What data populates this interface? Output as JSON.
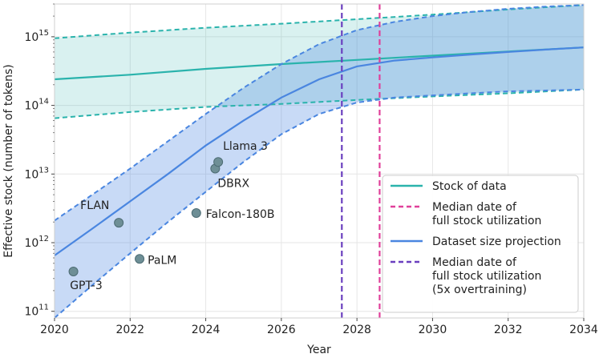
{
  "chart_data": {
    "type": "line",
    "xlabel": "Year",
    "ylabel": "Effective stock (number of tokens)",
    "xlim": [
      2020,
      2034
    ],
    "ylim": [
      80000000000,
      3000000000000000
    ],
    "yscale": "log",
    "x_ticks": [
      2020,
      2022,
      2024,
      2026,
      2028,
      2030,
      2032,
      2034
    ],
    "x_tick_labels": [
      "2020",
      "2022",
      "2024",
      "2026",
      "2028",
      "2030",
      "2032",
      "2034"
    ],
    "y_ticks": [
      100000000000,
      1000000000000,
      10000000000000,
      100000000000000,
      1000000000000000
    ],
    "y_tick_labels": [
      {
        "base": "10",
        "exp": "11"
      },
      {
        "base": "10",
        "exp": "12"
      },
      {
        "base": "10",
        "exp": "13"
      },
      {
        "base": "10",
        "exp": "14"
      },
      {
        "base": "10",
        "exp": "15"
      }
    ],
    "grid": true,
    "legend_position": "lower-right",
    "series": [
      {
        "name": "Stock of data",
        "color": "#2ab3ac",
        "x": [
          2020,
          2022,
          2024,
          2026,
          2028,
          2030,
          2032,
          2034
        ],
        "median": [
          240000000000000,
          280000000000000,
          340000000000000,
          400000000000000,
          460000000000000,
          530000000000000,
          610000000000000,
          700000000000000
        ],
        "lower": [
          65000000000000,
          80000000000000,
          95000000000000,
          105000000000000,
          120000000000000,
          135000000000000,
          150000000000000,
          170000000000000
        ],
        "upper": [
          950000000000000,
          1150000000000000,
          1350000000000000,
          1550000000000000,
          1800000000000000,
          2100000000000000,
          2500000000000000,
          2900000000000000
        ]
      },
      {
        "name": "Dataset size projection",
        "color": "#4a86e0",
        "x": [
          2020,
          2021,
          2022,
          2023,
          2024,
          2025,
          2026,
          2027,
          2028,
          2029,
          2030,
          2031,
          2032,
          2033,
          2034
        ],
        "median": [
          650000000000,
          1600000000000,
          4000000000000,
          10000000000000,
          26000000000000,
          60000000000000,
          130000000000000,
          240000000000000,
          370000000000000,
          450000000000000,
          500000000000000,
          550000000000000,
          600000000000000,
          650000000000000,
          700000000000000
        ],
        "lower": [
          80000000000,
          240000000000,
          700000000000,
          2000000000000,
          5500000000000,
          15000000000000,
          38000000000000,
          75000000000000,
          110000000000000,
          130000000000000,
          140000000000000,
          150000000000000,
          160000000000000,
          165000000000000,
          170000000000000
        ],
        "upper": [
          2100000000000,
          5000000000000,
          12000000000000,
          30000000000000,
          75000000000000,
          180000000000000,
          400000000000000,
          780000000000000,
          1250000000000000,
          1650000000000000,
          2000000000000000,
          2300000000000000,
          2550000000000000,
          2750000000000000,
          2900000000000000
        ]
      }
    ],
    "vlines": [
      {
        "label": "Median date of full stock utilization",
        "x": 2028.6,
        "color": "#e0409a"
      },
      {
        "label": "Median date of full stock utilization (5x overtraining)",
        "x": 2027.6,
        "color": "#6a3fbf"
      }
    ],
    "points": [
      {
        "label": "GPT-3",
        "x": 2020.5,
        "y": 380000000000
      },
      {
        "label": "FLAN",
        "x": 2021.7,
        "y": 1950000000000
      },
      {
        "label": "PaLM",
        "x": 2022.25,
        "y": 580000000000
      },
      {
        "label": "Falcon-180B",
        "x": 2023.75,
        "y": 2700000000000
      },
      {
        "label": "DBRX",
        "x": 2024.25,
        "y": 12000000000000
      },
      {
        "label": "Llama 3",
        "x": 2024.33,
        "y": 15000000000000
      }
    ],
    "legend": [
      {
        "kind": "solid",
        "color": "#2ab3ac",
        "lines": [
          "Stock of data"
        ]
      },
      {
        "kind": "dashed",
        "color": "#e0409a",
        "lines": [
          "Median date of",
          "full stock utilization"
        ]
      },
      {
        "kind": "solid",
        "color": "#4a86e0",
        "lines": [
          "Dataset size projection"
        ]
      },
      {
        "kind": "dashed",
        "color": "#6a3fbf",
        "lines": [
          "Median date of",
          "full stock utilization",
          "(5x overtraining)"
        ]
      }
    ]
  }
}
